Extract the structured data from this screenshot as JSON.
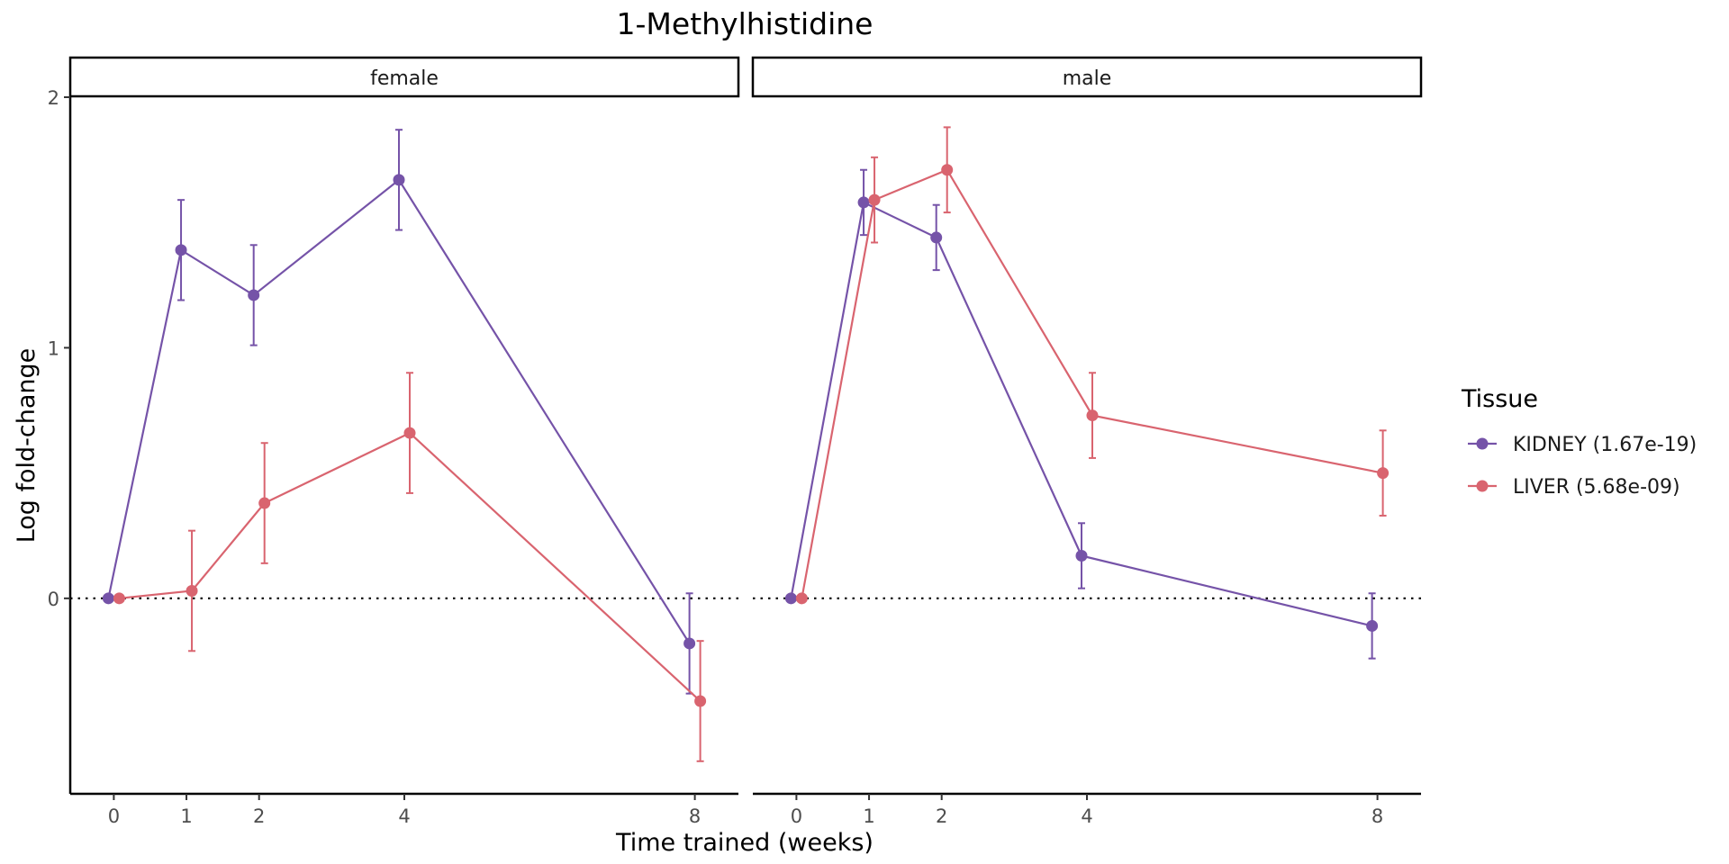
{
  "chart_data": {
    "type": "line",
    "title": "1-Methylhistidine",
    "xlabel": "Time trained (weeks)",
    "ylabel": "Log fold-change",
    "x_ticks": [
      0,
      1,
      2,
      4,
      8
    ],
    "y_ticks": [
      0,
      1,
      2
    ],
    "xlim": [
      -0.6,
      8.6
    ],
    "ylim": [
      -0.78,
      2.0
    ],
    "reference_line": 0,
    "legend": {
      "title": "Tissue",
      "position": "right"
    },
    "panels": [
      {
        "label": "female",
        "series": [
          {
            "name": "KIDNEY (1.67e-19)",
            "color": "#7553a8",
            "points": [
              {
                "x": 0,
                "y": 0.0,
                "lo": 0.0,
                "hi": 0.0
              },
              {
                "x": 1,
                "y": 1.39,
                "lo": 1.19,
                "hi": 1.59
              },
              {
                "x": 2,
                "y": 1.21,
                "lo": 1.01,
                "hi": 1.41
              },
              {
                "x": 4,
                "y": 1.67,
                "lo": 1.47,
                "hi": 1.87
              },
              {
                "x": 8,
                "y": -0.18,
                "lo": -0.38,
                "hi": 0.02
              }
            ]
          },
          {
            "name": "LIVER (5.68e-09)",
            "color": "#d9646f",
            "points": [
              {
                "x": 0,
                "y": 0.0,
                "lo": 0.0,
                "hi": 0.0
              },
              {
                "x": 1,
                "y": 0.03,
                "lo": -0.21,
                "hi": 0.27
              },
              {
                "x": 2,
                "y": 0.38,
                "lo": 0.14,
                "hi": 0.62
              },
              {
                "x": 4,
                "y": 0.66,
                "lo": 0.42,
                "hi": 0.9
              },
              {
                "x": 8,
                "y": -0.41,
                "lo": -0.65,
                "hi": -0.17
              }
            ]
          }
        ]
      },
      {
        "label": "male",
        "series": [
          {
            "name": "KIDNEY (1.67e-19)",
            "color": "#7553a8",
            "points": [
              {
                "x": 0,
                "y": 0.0,
                "lo": 0.0,
                "hi": 0.0
              },
              {
                "x": 1,
                "y": 1.58,
                "lo": 1.45,
                "hi": 1.71
              },
              {
                "x": 2,
                "y": 1.44,
                "lo": 1.31,
                "hi": 1.57
              },
              {
                "x": 4,
                "y": 0.17,
                "lo": 0.04,
                "hi": 0.3
              },
              {
                "x": 8,
                "y": -0.11,
                "lo": -0.24,
                "hi": 0.02
              }
            ]
          },
          {
            "name": "LIVER (5.68e-09)",
            "color": "#d9646f",
            "points": [
              {
                "x": 0,
                "y": 0.0,
                "lo": 0.0,
                "hi": 0.0
              },
              {
                "x": 1,
                "y": 1.59,
                "lo": 1.42,
                "hi": 1.76
              },
              {
                "x": 2,
                "y": 1.71,
                "lo": 1.54,
                "hi": 1.88
              },
              {
                "x": 4,
                "y": 0.73,
                "lo": 0.56,
                "hi": 0.9
              },
              {
                "x": 8,
                "y": 0.5,
                "lo": 0.33,
                "hi": 0.67
              }
            ]
          }
        ]
      }
    ]
  }
}
